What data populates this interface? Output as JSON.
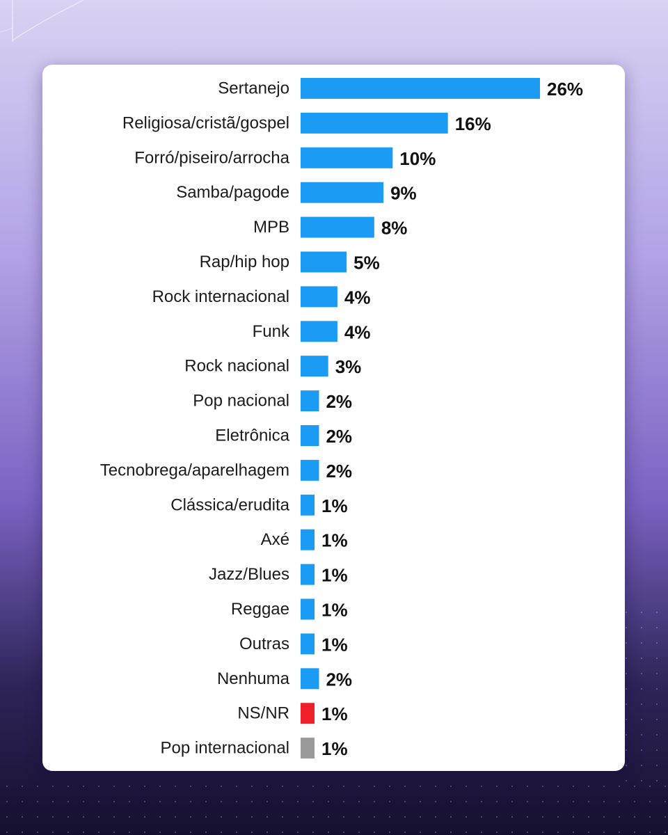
{
  "colors": {
    "bar_default": "#1a9cf5",
    "bar_red": "#f0202a",
    "bar_gray": "#9a9a9a"
  },
  "chart_data": {
    "type": "bar",
    "orientation": "horizontal",
    "title": "",
    "xlabel": "",
    "ylabel": "",
    "xlim": [
      0,
      26
    ],
    "grid": false,
    "legend": "none",
    "categories": [
      "Sertanejo",
      "Religiosa/cristã/gospel",
      "Forró/piseiro/arrocha",
      "Samba/pagode",
      "MPB",
      "Rap/hip hop",
      "Rock internacional",
      "Funk",
      "Rock nacional",
      "Pop nacional",
      "Eletrônica",
      "Tecnobrega/aparelhagem",
      "Clássica/erudita",
      "Axé",
      "Jazz/Blues",
      "Reggae",
      "Outras",
      "Nenhuma",
      "NS/NR",
      "Pop internacional"
    ],
    "values": [
      26,
      16,
      10,
      9,
      8,
      5,
      4,
      4,
      3,
      2,
      2,
      2,
      1,
      1,
      1,
      1,
      1,
      2,
      1,
      1
    ],
    "value_labels": [
      "26%",
      "16%",
      "10%",
      "9%",
      "8%",
      "5%",
      "4%",
      "4%",
      "3%",
      "2%",
      "2%",
      "2%",
      "1%",
      "1%",
      "1%",
      "1%",
      "1%",
      "2%",
      "1%",
      "1%"
    ],
    "bar_colors": [
      "#1a9cf5",
      "#1a9cf5",
      "#1a9cf5",
      "#1a9cf5",
      "#1a9cf5",
      "#1a9cf5",
      "#1a9cf5",
      "#1a9cf5",
      "#1a9cf5",
      "#1a9cf5",
      "#1a9cf5",
      "#1a9cf5",
      "#1a9cf5",
      "#1a9cf5",
      "#1a9cf5",
      "#1a9cf5",
      "#1a9cf5",
      "#1a9cf5",
      "#f0202a",
      "#9a9a9a"
    ]
  }
}
